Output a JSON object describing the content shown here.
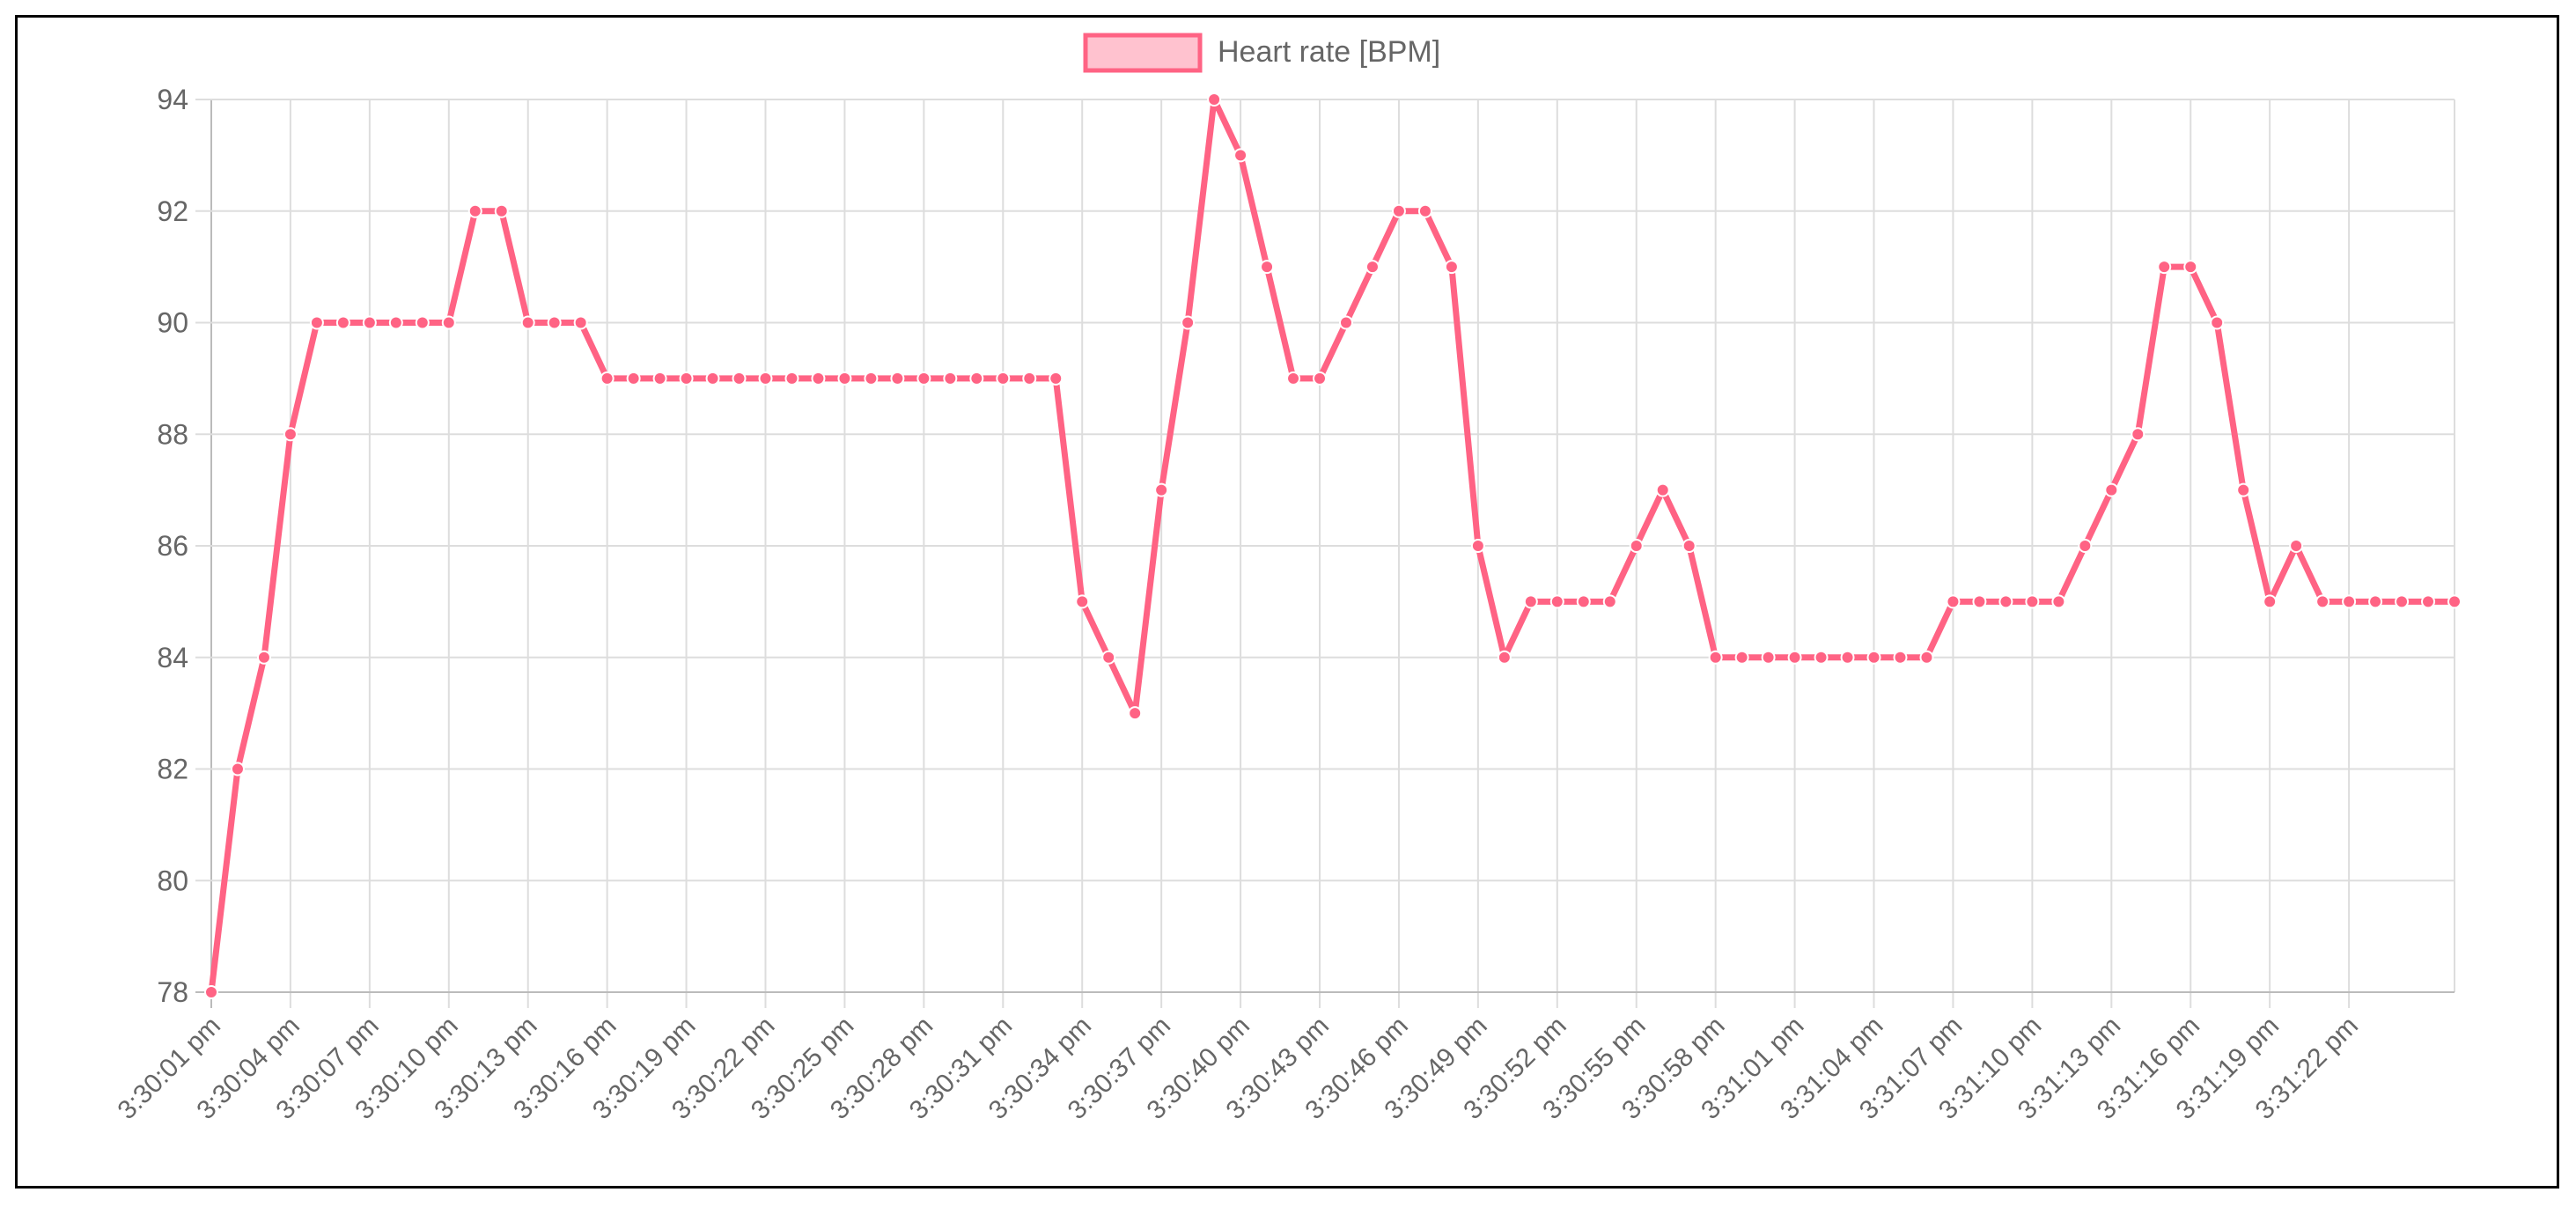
{
  "chart_data": {
    "type": "line",
    "legend": {
      "label": "Heart rate [BPM]",
      "position": "top",
      "swatch_fill": "#ffc2cf",
      "swatch_stroke": "#ff6384"
    },
    "colors": {
      "line": "#ff6384",
      "point": "#ff6384",
      "grid": "#dddddd",
      "tick_text": "#666666",
      "axis": "#bbbbbb"
    },
    "grid": true,
    "ylim": [
      78,
      94
    ],
    "y_ticks": [
      78,
      80,
      82,
      84,
      86,
      88,
      90,
      92,
      94
    ],
    "x_tick_labels": [
      "3:30:01 pm",
      "3:30:04 pm",
      "3:30:07 pm",
      "3:30:10 pm",
      "3:30:13 pm",
      "3:30:16 pm",
      "3:30:19 pm",
      "3:30:22 pm",
      "3:30:25 pm",
      "3:30:28 pm",
      "3:30:31 pm",
      "3:30:34 pm",
      "3:30:37 pm",
      "3:30:40 pm",
      "3:30:43 pm",
      "3:30:46 pm",
      "3:30:49 pm",
      "3:30:52 pm",
      "3:30:55 pm",
      "3:30:58 pm",
      "3:31:01 pm",
      "3:31:04 pm",
      "3:31:07 pm",
      "3:31:10 pm",
      "3:31:13 pm",
      "3:31:16 pm",
      "3:31:19 pm",
      "3:31:22 pm"
    ],
    "series": [
      {
        "name": "Heart rate [BPM]",
        "values": [
          78,
          82,
          84,
          88,
          90,
          90,
          90,
          90,
          90,
          90,
          92,
          92,
          90,
          90,
          90,
          89,
          89,
          89,
          89,
          89,
          89,
          89,
          89,
          89,
          89,
          89,
          89,
          89,
          89,
          89,
          89,
          89,
          89,
          85,
          84,
          83,
          87,
          90,
          94,
          93,
          91,
          89,
          89,
          90,
          91,
          92,
          92,
          91,
          86,
          84,
          85,
          85,
          85,
          85,
          86,
          87,
          86,
          84,
          84,
          84,
          84,
          84,
          84,
          84,
          84,
          84,
          85,
          85,
          85,
          85,
          85,
          86,
          87,
          88,
          91,
          91,
          90,
          87,
          85,
          86,
          85,
          85,
          85,
          85,
          85,
          85
        ]
      }
    ]
  }
}
